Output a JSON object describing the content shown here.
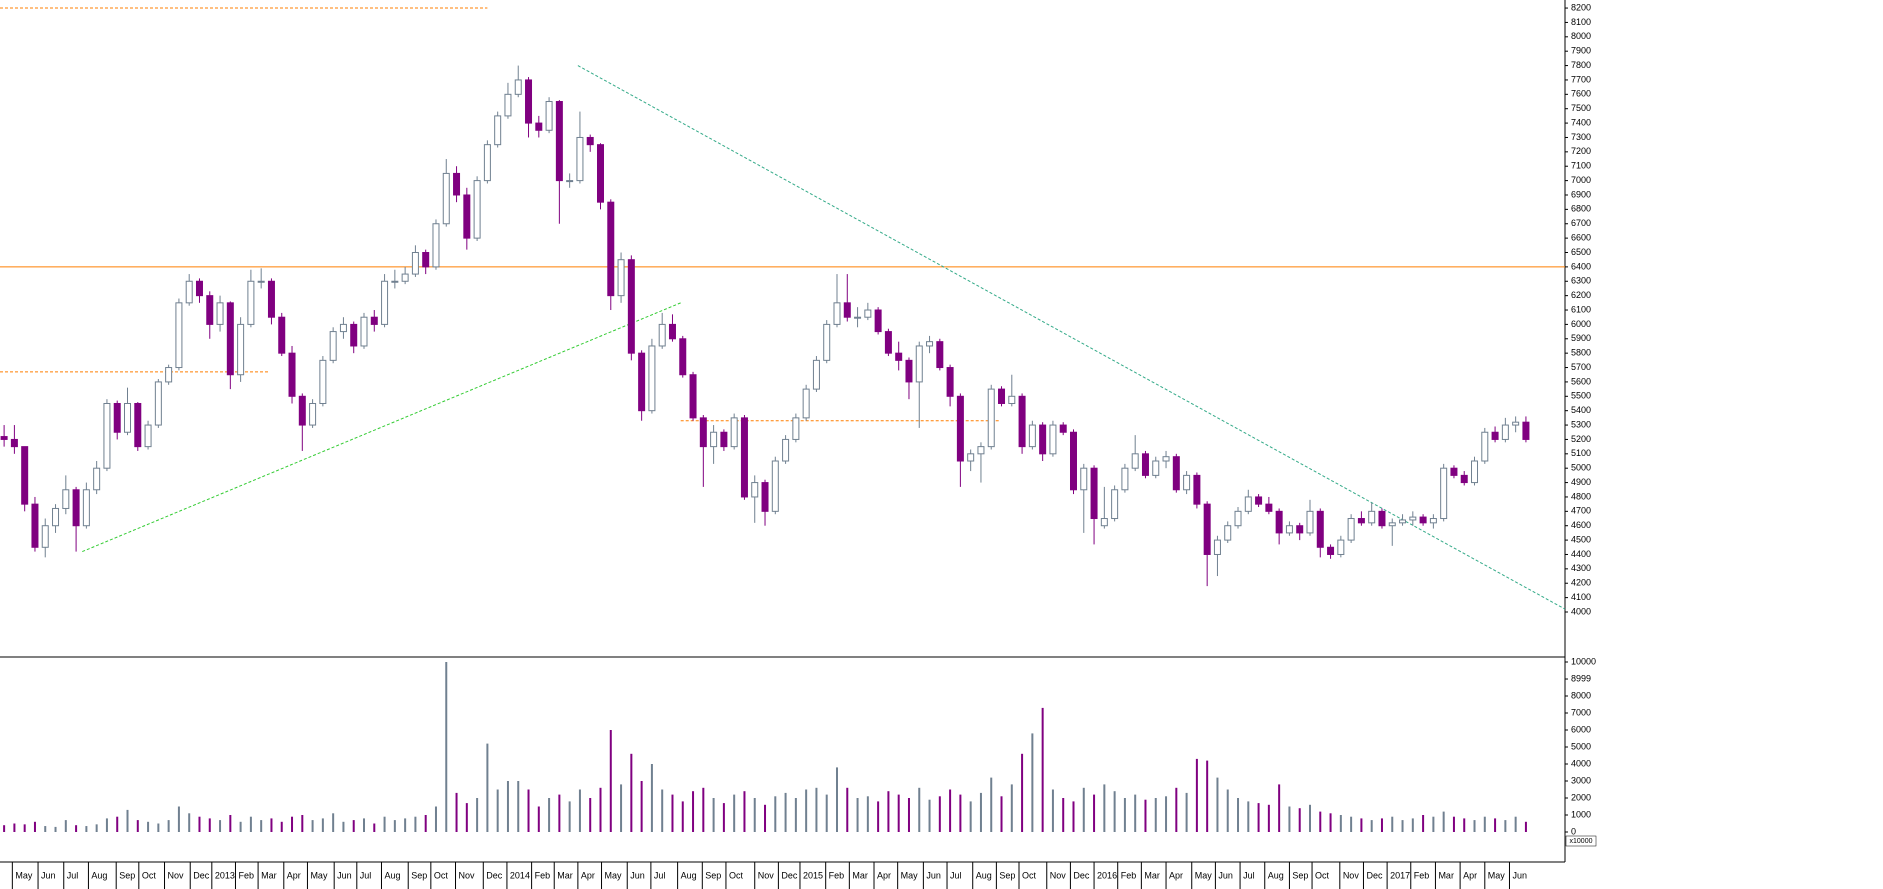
{
  "chart_data": {
    "type": "candlestick",
    "up_color": "#ffffff",
    "up_stroke": "#708090",
    "down_color": "#800080",
    "xlim": [
      -0.4,
      151.8
    ],
    "ylim": [
      3687,
      8256
    ],
    "yticks": [
      4000,
      4100,
      4200,
      4300,
      4400,
      4500,
      4600,
      4700,
      4800,
      4900,
      5000,
      5100,
      5200,
      5300,
      5400,
      5500,
      5600,
      5700,
      5800,
      5900,
      6000,
      6100,
      6200,
      6300,
      6400,
      6500,
      6600,
      6700,
      6800,
      6900,
      7000,
      7100,
      7200,
      7300,
      7400,
      7500,
      7600,
      7700,
      7800,
      7900,
      8000,
      8100,
      8200
    ],
    "volume_ylim": [
      0,
      10000
    ],
    "volume_yticks": [
      0,
      1000,
      2000,
      3000,
      4000,
      5000,
      6000,
      7000,
      8000,
      8999,
      10000
    ],
    "volume_unit": "x10000",
    "xticks": [
      {
        "value": 0.8,
        "label": "May"
      },
      {
        "value": 3.3,
        "label": "Jun"
      },
      {
        "value": 5.8,
        "label": "Jul"
      },
      {
        "value": 8.2,
        "label": "Aug"
      },
      {
        "value": 10.9,
        "label": "Sep"
      },
      {
        "value": 13.1,
        "label": "Oct"
      },
      {
        "value": 15.6,
        "label": "Nov"
      },
      {
        "value": 18.1,
        "label": "Dec"
      },
      {
        "value": 20.2,
        "label": "2013"
      },
      {
        "value": 22.5,
        "label": "Feb"
      },
      {
        "value": 24.7,
        "label": "Mar"
      },
      {
        "value": 27.2,
        "label": "Apr"
      },
      {
        "value": 29.5,
        "label": "May"
      },
      {
        "value": 32.1,
        "label": "Jun"
      },
      {
        "value": 34.3,
        "label": "Jul"
      },
      {
        "value": 36.7,
        "label": "Aug"
      },
      {
        "value": 39.3,
        "label": "Sep"
      },
      {
        "value": 41.5,
        "label": "Oct"
      },
      {
        "value": 43.9,
        "label": "Nov"
      },
      {
        "value": 46.6,
        "label": "Dec"
      },
      {
        "value": 48.9,
        "label": "2014"
      },
      {
        "value": 51.3,
        "label": "Feb"
      },
      {
        "value": 53.5,
        "label": "Mar"
      },
      {
        "value": 55.8,
        "label": "Apr"
      },
      {
        "value": 58.1,
        "label": "May"
      },
      {
        "value": 60.6,
        "label": "Jun"
      },
      {
        "value": 62.9,
        "label": "Jul"
      },
      {
        "value": 65.5,
        "label": "Aug"
      },
      {
        "value": 67.9,
        "label": "Sep"
      },
      {
        "value": 70.2,
        "label": "Oct"
      },
      {
        "value": 73.0,
        "label": "Nov"
      },
      {
        "value": 75.3,
        "label": "Dec"
      },
      {
        "value": 77.4,
        "label": "2015"
      },
      {
        "value": 79.9,
        "label": "Feb"
      },
      {
        "value": 82.2,
        "label": "Mar"
      },
      {
        "value": 84.6,
        "label": "Apr"
      },
      {
        "value": 86.9,
        "label": "May"
      },
      {
        "value": 89.4,
        "label": "Jun"
      },
      {
        "value": 91.7,
        "label": "Jul"
      },
      {
        "value": 94.2,
        "label": "Aug"
      },
      {
        "value": 96.5,
        "label": "Sep"
      },
      {
        "value": 98.7,
        "label": "Oct"
      },
      {
        "value": 101.4,
        "label": "Nov"
      },
      {
        "value": 103.7,
        "label": "Dec"
      },
      {
        "value": 106.0,
        "label": "2016"
      },
      {
        "value": 108.3,
        "label": "Feb"
      },
      {
        "value": 110.6,
        "label": "Mar"
      },
      {
        "value": 113.0,
        "label": "Apr"
      },
      {
        "value": 115.5,
        "label": "May"
      },
      {
        "value": 117.8,
        "label": "Jun"
      },
      {
        "value": 120.2,
        "label": "Jul"
      },
      {
        "value": 122.6,
        "label": "Aug"
      },
      {
        "value": 125.0,
        "label": "Sep"
      },
      {
        "value": 127.2,
        "label": "Oct"
      },
      {
        "value": 129.9,
        "label": "Nov"
      },
      {
        "value": 132.2,
        "label": "Dec"
      },
      {
        "value": 134.5,
        "label": "2017"
      },
      {
        "value": 136.8,
        "label": "Feb"
      },
      {
        "value": 139.2,
        "label": "Mar"
      },
      {
        "value": 141.6,
        "label": "Apr"
      },
      {
        "value": 144.0,
        "label": "May"
      },
      {
        "value": 146.4,
        "label": "Jun"
      }
    ],
    "candles": [
      [
        5220,
        5300,
        5150,
        5200
      ],
      [
        5200,
        5300,
        5100,
        5150
      ],
      [
        5150,
        5150,
        4700,
        4750
      ],
      [
        4750,
        4800,
        4420,
        4450
      ],
      [
        4450,
        4650,
        4380,
        4600
      ],
      [
        4600,
        4750,
        4550,
        4720
      ],
      [
        4720,
        4950,
        4680,
        4850
      ],
      [
        4850,
        4870,
        4420,
        4600
      ],
      [
        4600,
        4900,
        4580,
        4850
      ],
      [
        4850,
        5050,
        4820,
        5000
      ],
      [
        5000,
        5480,
        4980,
        5450
      ],
      [
        5450,
        5470,
        5200,
        5250
      ],
      [
        5250,
        5560,
        5230,
        5450
      ],
      [
        5450,
        5460,
        5120,
        5150
      ],
      [
        5150,
        5330,
        5130,
        5300
      ],
      [
        5300,
        5620,
        5280,
        5600
      ],
      [
        5600,
        5720,
        5580,
        5700
      ],
      [
        5700,
        6180,
        5680,
        6150
      ],
      [
        6150,
        6350,
        6130,
        6300
      ],
      [
        6300,
        6320,
        6150,
        6200
      ],
      [
        6200,
        6230,
        5900,
        6000
      ],
      [
        6000,
        6200,
        5950,
        6150
      ],
      [
        6150,
        6160,
        5550,
        5650
      ],
      [
        5650,
        6050,
        5600,
        6000
      ],
      [
        6000,
        6380,
        5980,
        6300
      ],
      [
        6300,
        6390,
        6250,
        6300
      ],
      [
        6300,
        6320,
        6000,
        6050
      ],
      [
        6050,
        6080,
        5780,
        5800
      ],
      [
        5800,
        5850,
        5450,
        5500
      ],
      [
        5500,
        5520,
        5120,
        5300
      ],
      [
        5300,
        5480,
        5280,
        5450
      ],
      [
        5450,
        5780,
        5430,
        5750
      ],
      [
        5750,
        5980,
        5730,
        5950
      ],
      [
        5950,
        6050,
        5900,
        6000
      ],
      [
        6000,
        6020,
        5800,
        5850
      ],
      [
        5850,
        6080,
        5830,
        6050
      ],
      [
        6050,
        6100,
        5950,
        6000
      ],
      [
        6000,
        6350,
        5980,
        6300
      ],
      [
        6300,
        6380,
        6250,
        6300
      ],
      [
        6300,
        6400,
        6280,
        6350
      ],
      [
        6350,
        6550,
        6330,
        6500
      ],
      [
        6500,
        6520,
        6350,
        6400
      ],
      [
        6400,
        6730,
        6380,
        6700
      ],
      [
        6700,
        7150,
        6680,
        7050
      ],
      [
        7050,
        7100,
        6850,
        6900
      ],
      [
        6900,
        6950,
        6520,
        6600
      ],
      [
        6600,
        7030,
        6580,
        7000
      ],
      [
        7000,
        7280,
        6980,
        7250
      ],
      [
        7250,
        7480,
        7230,
        7450
      ],
      [
        7450,
        7680,
        7430,
        7600
      ],
      [
        7600,
        7800,
        7580,
        7700
      ],
      [
        7700,
        7720,
        7300,
        7400
      ],
      [
        7400,
        7450,
        7300,
        7350
      ],
      [
        7350,
        7580,
        7330,
        7550
      ],
      [
        7550,
        7560,
        6700,
        7000
      ],
      [
        7000,
        7050,
        6950,
        7000
      ],
      [
        7000,
        7480,
        6980,
        7300
      ],
      [
        7300,
        7320,
        7200,
        7250
      ],
      [
        7250,
        7260,
        6800,
        6850
      ],
      [
        6850,
        6870,
        6100,
        6200
      ],
      [
        6200,
        6500,
        6150,
        6450
      ],
      [
        6450,
        6480,
        5750,
        5800
      ],
      [
        5800,
        5820,
        5330,
        5400
      ],
      [
        5400,
        5900,
        5380,
        5850
      ],
      [
        5850,
        6080,
        5830,
        6000
      ],
      [
        6000,
        6070,
        5880,
        5900
      ],
      [
        5900,
        5920,
        5630,
        5650
      ],
      [
        5650,
        5670,
        5330,
        5350
      ],
      [
        5350,
        5370,
        4870,
        5150
      ],
      [
        5150,
        5300,
        5030,
        5250
      ],
      [
        5250,
        5270,
        5120,
        5150
      ],
      [
        5150,
        5380,
        5130,
        5350
      ],
      [
        5350,
        5370,
        4780,
        4800
      ],
      [
        4800,
        4950,
        4620,
        4900
      ],
      [
        4900,
        4920,
        4600,
        4700
      ],
      [
        4700,
        5080,
        4680,
        5050
      ],
      [
        5050,
        5230,
        5030,
        5200
      ],
      [
        5200,
        5380,
        5180,
        5350
      ],
      [
        5350,
        5580,
        5330,
        5550
      ],
      [
        5550,
        5780,
        5530,
        5750
      ],
      [
        5750,
        6030,
        5730,
        6000
      ],
      [
        6000,
        6350,
        5980,
        6150
      ],
      [
        6150,
        6350,
        6020,
        6050
      ],
      [
        6050,
        6120,
        5980,
        6050
      ],
      [
        6050,
        6150,
        6030,
        6100
      ],
      [
        6100,
        6120,
        5930,
        5950
      ],
      [
        5950,
        5970,
        5780,
        5800
      ],
      [
        5800,
        5880,
        5680,
        5750
      ],
      [
        5750,
        5770,
        5480,
        5600
      ],
      [
        5600,
        5880,
        5280,
        5850
      ],
      [
        5850,
        5920,
        5800,
        5880
      ],
      [
        5880,
        5900,
        5680,
        5700
      ],
      [
        5700,
        5720,
        5430,
        5500
      ],
      [
        5500,
        5520,
        4870,
        5050
      ],
      [
        5050,
        5130,
        4980,
        5100
      ],
      [
        5100,
        5180,
        4900,
        5150
      ],
      [
        5150,
        5580,
        5130,
        5550
      ],
      [
        5550,
        5570,
        5430,
        5450
      ],
      [
        5450,
        5650,
        5430,
        5500
      ],
      [
        5500,
        5520,
        5100,
        5150
      ],
      [
        5150,
        5330,
        5130,
        5300
      ],
      [
        5300,
        5320,
        5050,
        5100
      ],
      [
        5100,
        5330,
        5080,
        5300
      ],
      [
        5300,
        5320,
        5230,
        5250
      ],
      [
        5250,
        5270,
        4820,
        4850
      ],
      [
        4850,
        5030,
        4550,
        5000
      ],
      [
        5000,
        5020,
        4470,
        4650
      ],
      [
        4600,
        4870,
        4580,
        4650
      ],
      [
        4650,
        4880,
        4630,
        4850
      ],
      [
        4850,
        5030,
        4830,
        5000
      ],
      [
        5000,
        5230,
        4980,
        5100
      ],
      [
        5100,
        5120,
        4930,
        4950
      ],
      [
        4950,
        5080,
        4930,
        5050
      ],
      [
        5050,
        5120,
        5000,
        5080
      ],
      [
        5080,
        5100,
        4830,
        4850
      ],
      [
        4850,
        4980,
        4820,
        4950
      ],
      [
        4950,
        4970,
        4720,
        4750
      ],
      [
        4750,
        4770,
        4180,
        4400
      ],
      [
        4400,
        4530,
        4250,
        4500
      ],
      [
        4500,
        4630,
        4480,
        4600
      ],
      [
        4600,
        4730,
        4580,
        4700
      ],
      [
        4700,
        4850,
        4680,
        4800
      ],
      [
        4800,
        4820,
        4730,
        4750
      ],
      [
        4750,
        4800,
        4680,
        4700
      ],
      [
        4700,
        4720,
        4470,
        4550
      ],
      [
        4550,
        4630,
        4530,
        4600
      ],
      [
        4600,
        4620,
        4500,
        4550
      ],
      [
        4550,
        4780,
        4530,
        4700
      ],
      [
        4700,
        4720,
        4380,
        4450
      ],
      [
        4450,
        4470,
        4370,
        4400
      ],
      [
        4400,
        4530,
        4380,
        4500
      ],
      [
        4500,
        4680,
        4480,
        4650
      ],
      [
        4650,
        4700,
        4600,
        4620
      ],
      [
        4620,
        4760,
        4600,
        4700
      ],
      [
        4700,
        4720,
        4580,
        4600
      ],
      [
        4600,
        4650,
        4460,
        4620
      ],
      [
        4620,
        4680,
        4600,
        4640
      ],
      [
        4640,
        4700,
        4600,
        4660
      ],
      [
        4660,
        4680,
        4600,
        4620
      ],
      [
        4620,
        4680,
        4580,
        4650
      ],
      [
        4650,
        5030,
        4630,
        5000
      ],
      [
        5000,
        5020,
        4930,
        4950
      ],
      [
        4950,
        4980,
        4880,
        4900
      ],
      [
        4900,
        5080,
        4880,
        5050
      ],
      [
        5050,
        5280,
        5030,
        5250
      ],
      [
        5250,
        5290,
        5180,
        5200
      ],
      [
        5200,
        5350,
        5180,
        5300
      ],
      [
        5300,
        5360,
        5250,
        5320
      ],
      [
        5320,
        5360,
        5180,
        5200
      ]
    ],
    "volume": [
      400,
      500,
      450,
      600,
      350,
      300,
      700,
      400,
      350,
      450,
      800,
      900,
      1300,
      700,
      600,
      500,
      700,
      1500,
      1100,
      900,
      800,
      700,
      1000,
      600,
      900,
      700,
      800,
      600,
      900,
      1000,
      700,
      800,
      1100,
      600,
      700,
      800,
      500,
      900,
      700,
      800,
      900,
      1000,
      1500,
      10000,
      2300,
      1700,
      2000,
      5200,
      2500,
      3000,
      3000,
      2500,
      1500,
      2000,
      2200,
      1800,
      2500,
      2000,
      2600,
      6000,
      2800,
      4600,
      3000,
      4000,
      2500,
      2200,
      1800,
      2400,
      2600,
      2000,
      1700,
      2200,
      2400,
      2000,
      1600,
      2100,
      2300,
      2000,
      2500,
      2600,
      2200,
      3800,
      2600,
      2000,
      2100,
      1800,
      2400,
      2200,
      2000,
      2600,
      1900,
      2100,
      2500,
      2200,
      1800,
      2300,
      3200,
      2100,
      2800,
      4600,
      5800,
      7300,
      2500,
      2000,
      1800,
      2600,
      2200,
      2800,
      2400,
      2000,
      2200,
      1900,
      2000,
      2100,
      2600,
      2300,
      4300,
      4200,
      3200,
      2500,
      2000,
      1800,
      1700,
      1600,
      2800,
      1500,
      1400,
      1600,
      1200,
      1100,
      1000,
      900,
      800,
      700,
      800,
      900,
      700,
      800,
      1000,
      900,
      1200,
      900,
      800,
      700,
      900,
      800,
      700,
      900,
      600
    ],
    "lines": [
      {
        "color": "#ff7f00",
        "dash": false,
        "x": [
          -0.4,
          151.8
        ],
        "y": [
          6400,
          6400
        ]
      },
      {
        "color": "#ff7f00",
        "dash": true,
        "x": [
          -0.4,
          47.0
        ],
        "y": [
          8200,
          8200
        ]
      },
      {
        "color": "#ff7f00",
        "dash": true,
        "x": [
          -0.4,
          25.7
        ],
        "y": [
          5670,
          5670
        ]
      },
      {
        "color": "#ff7f00",
        "dash": true,
        "x": [
          65.8,
          96.9
        ],
        "y": [
          5330,
          5330
        ]
      },
      {
        "color": "#33cc33",
        "dash": true,
        "x": [
          7.6,
          65.8
        ],
        "y": [
          4420,
          6150
        ]
      },
      {
        "color": "#33aa88",
        "dash": true,
        "x": [
          55.8,
          151.8
        ],
        "y": [
          7800,
          4020
        ]
      }
    ]
  }
}
